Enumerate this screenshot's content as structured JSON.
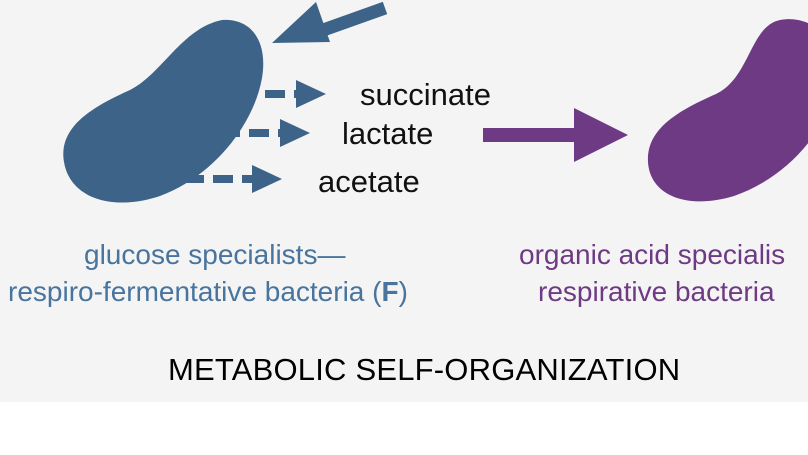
{
  "colors": {
    "glucose_specialist": "#3d6488",
    "organic_acid_specialist": "#6e3a84",
    "background": "#f4f4f4"
  },
  "metabolites": {
    "succinate": "succinate",
    "lactate": "lactate",
    "acetate": "acetate"
  },
  "glucose_group": {
    "line1": "glucose specialists—",
    "line2_prefix": "respiro-fermentative bacteria (",
    "line2_bold": "F",
    "line2_suffix": ")"
  },
  "organic_acid_group": {
    "line1": "organic acid specialis",
    "line2": "respirative bacteria"
  },
  "title": "METABOLIC SELF-ORGANIZATION"
}
